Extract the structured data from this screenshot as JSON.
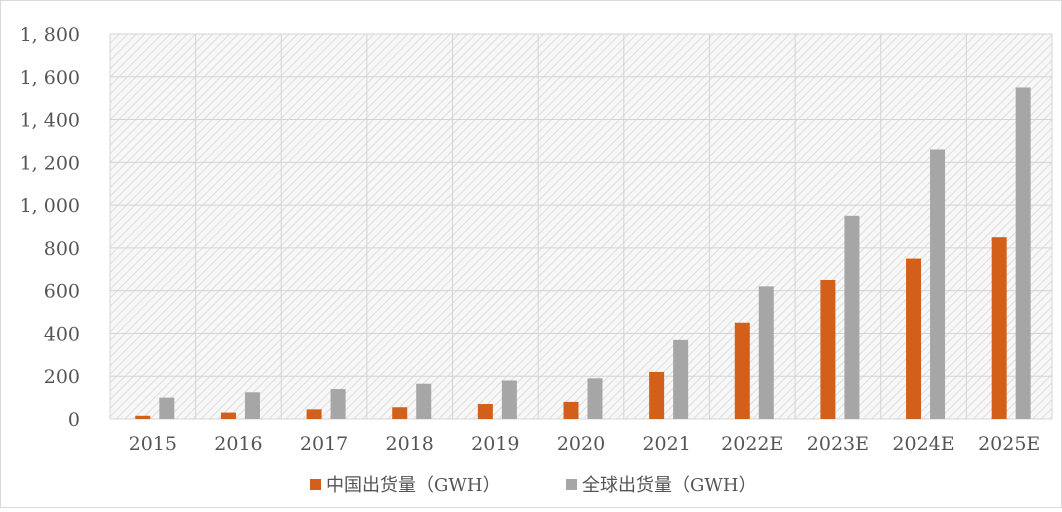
{
  "chart_data": {
    "type": "bar",
    "categories": [
      "2015",
      "2016",
      "2017",
      "2018",
      "2019",
      "2020",
      "2021",
      "2022E",
      "2023E",
      "2024E",
      "2025E"
    ],
    "series": [
      {
        "name": "中国出货量（GWH）",
        "values": [
          15,
          30,
          45,
          55,
          70,
          80,
          220,
          450,
          650,
          750,
          850
        ],
        "color": "#D2601A"
      },
      {
        "name": "全球出货量（GWH）",
        "values": [
          100,
          125,
          140,
          165,
          180,
          190,
          370,
          620,
          950,
          1260,
          1550
        ],
        "color": "#A6A6A6"
      }
    ],
    "yticks": [
      "0",
      "200",
      "400",
      "600",
      "800",
      "1, 000",
      "1, 200",
      "1, 400",
      "1, 600",
      "1, 800"
    ],
    "ylim": [
      0,
      1800
    ],
    "grid": true,
    "legend": "bottom"
  }
}
